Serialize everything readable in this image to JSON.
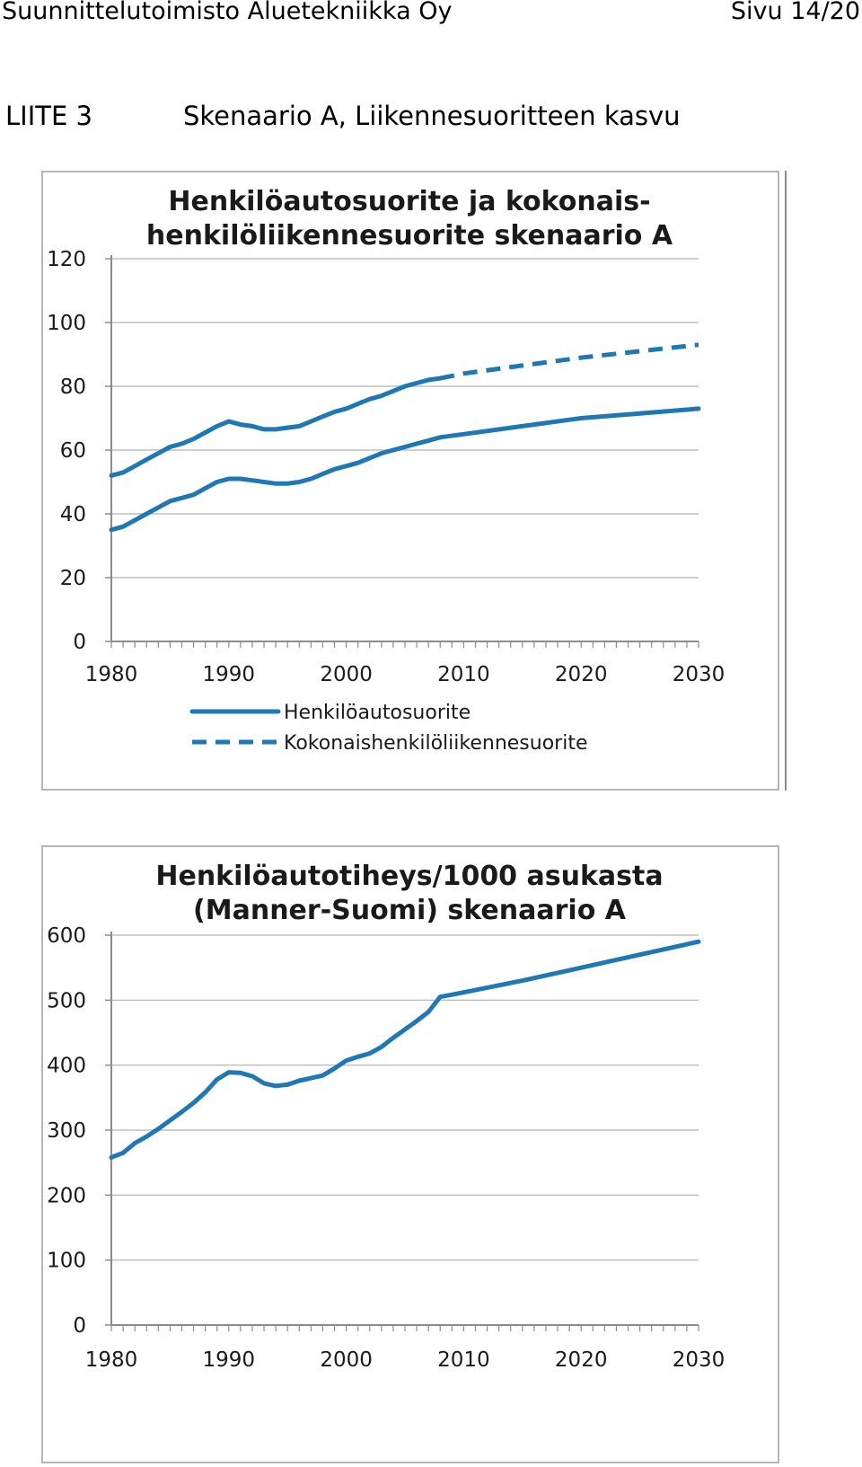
{
  "header": {
    "company": "Suunnittelutoimisto Aluetekniikka Oy",
    "page": "Sivu 14/20"
  },
  "appendix": {
    "label": "LIITE  3",
    "title": "Skenaario A, Liikennesuoritteen kasvu"
  },
  "colors": {
    "series": "#1f78b4",
    "grid": "#bfbfbf",
    "axis": "#8c8c8c",
    "border": "#b5b5b5"
  },
  "chart_data": [
    {
      "type": "line",
      "title": "Henkilöautosuorite ja kokonais-henkilöliikennesuorite skenaario A",
      "title_lines": [
        "Henkilöautosuorite ja kokonais-",
        "henkilöliikennesuorite skenaario A"
      ],
      "xlim": [
        1980,
        2030
      ],
      "ylim": [
        0,
        120
      ],
      "x_ticks": [
        1980,
        1990,
        2000,
        2010,
        2020,
        2030
      ],
      "y_ticks": [
        0,
        20,
        40,
        60,
        80,
        100,
        120
      ],
      "grid": true,
      "legend": "bottom",
      "series": [
        {
          "name": "Henkilöautosuorite",
          "style": "solid",
          "x": [
            1980,
            1981,
            1982,
            1983,
            1984,
            1985,
            1986,
            1987,
            1988,
            1989,
            1990,
            1991,
            1992,
            1993,
            1994,
            1995,
            1996,
            1997,
            1998,
            1999,
            2000,
            2001,
            2002,
            2003,
            2004,
            2005,
            2006,
            2007,
            2008,
            2010,
            2015,
            2020,
            2025,
            2030
          ],
          "values": [
            35,
            36,
            38,
            40,
            42,
            44,
            45,
            46,
            48,
            50,
            51,
            51,
            50.5,
            50,
            49.5,
            49.5,
            50,
            51,
            52.5,
            54,
            55,
            56,
            57.5,
            59,
            60,
            61,
            62,
            63,
            64,
            65,
            67.5,
            70,
            71.5,
            73
          ]
        },
        {
          "name": "Kokonaishenkilöliikennesuorite",
          "style": "solid-then-dashed",
          "dashed_from_x": 2008,
          "x": [
            1980,
            1981,
            1982,
            1983,
            1984,
            1985,
            1986,
            1987,
            1988,
            1989,
            1990,
            1991,
            1992,
            1993,
            1994,
            1995,
            1996,
            1997,
            1998,
            1999,
            2000,
            2001,
            2002,
            2003,
            2004,
            2005,
            2006,
            2007,
            2008,
            2010,
            2015,
            2020,
            2025,
            2030
          ],
          "values": [
            52,
            53,
            55,
            57,
            59,
            61,
            62,
            63.5,
            65.5,
            67.5,
            69,
            68,
            67.5,
            66.5,
            66.5,
            67,
            67.5,
            69,
            70.5,
            72,
            73,
            74.5,
            76,
            77,
            78.5,
            80,
            81,
            82,
            82.5,
            84,
            86.5,
            89,
            91,
            93
          ]
        }
      ]
    },
    {
      "type": "line",
      "title": "Henkilöautotiheys/1000 asukasta (Manner-Suomi) skenaario A",
      "title_lines": [
        "Henkilöautotiheys/1000 asukasta",
        "(Manner-Suomi) skenaario A"
      ],
      "xlim": [
        1980,
        2030
      ],
      "ylim": [
        0,
        600
      ],
      "x_ticks": [
        1980,
        1990,
        2000,
        2010,
        2020,
        2030
      ],
      "y_ticks": [
        0,
        100,
        200,
        300,
        400,
        500,
        600
      ],
      "grid": true,
      "legend": "none",
      "series": [
        {
          "name": "",
          "style": "solid",
          "x": [
            1980,
            1981,
            1982,
            1983,
            1984,
            1985,
            1986,
            1987,
            1988,
            1989,
            1990,
            1991,
            1992,
            1993,
            1994,
            1995,
            1996,
            1997,
            1998,
            1999,
            2000,
            2001,
            2002,
            2003,
            2004,
            2005,
            2006,
            2007,
            2008,
            2010,
            2015,
            2020,
            2025,
            2030
          ],
          "values": [
            258,
            265,
            280,
            290,
            302,
            315,
            328,
            342,
            358,
            378,
            389,
            388,
            383,
            372,
            368,
            370,
            376,
            380,
            384,
            395,
            407,
            413,
            418,
            428,
            442,
            455,
            468,
            482,
            505,
            512,
            530,
            550,
            570,
            590
          ]
        }
      ]
    }
  ]
}
